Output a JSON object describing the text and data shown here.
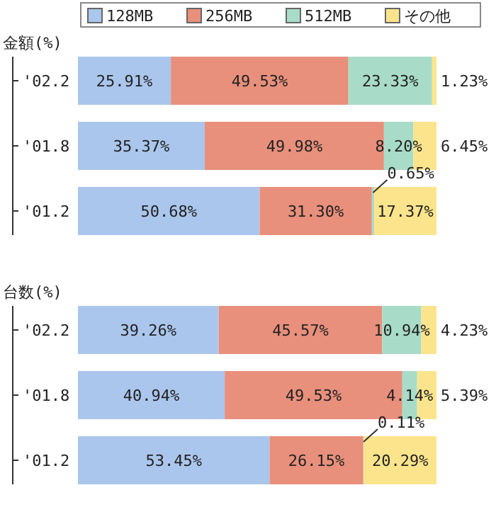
{
  "chart_data": [
    {
      "type": "bar",
      "orientation": "horizontal",
      "stacked": true,
      "title": "金額(%)",
      "categories": [
        "'02.2",
        "'01.8",
        "'01.2"
      ],
      "tick_labels": "y",
      "legend": "top",
      "series": [
        {
          "name": "128MB",
          "color": "#aac6ec",
          "values": [
            25.91,
            35.37,
            50.68
          ],
          "value_labels": [
            "25.91%",
            "35.37%",
            "50.68%"
          ]
        },
        {
          "name": "256MB",
          "color": "#e8907c",
          "values": [
            49.53,
            49.98,
            31.3
          ],
          "value_labels": [
            "49.53%",
            "49.98%",
            "31.30%"
          ]
        },
        {
          "name": "512MB",
          "color": "#a8dcc8",
          "values": [
            23.33,
            8.2,
            0.65
          ],
          "value_labels": [
            "23.33%",
            "8.20%",
            "0.65%"
          ]
        },
        {
          "name": "その他",
          "color": "#fce48c",
          "values": [
            1.23,
            6.45,
            17.37
          ],
          "value_labels": [
            "1.23%",
            "6.45%",
            "17.37%"
          ]
        }
      ]
    },
    {
      "type": "bar",
      "orientation": "horizontal",
      "stacked": true,
      "title": "台数(%)",
      "categories": [
        "'02.2",
        "'01.8",
        "'01.2"
      ],
      "tick_labels": "y",
      "series": [
        {
          "color": "#aac6ec",
          "values": [
            39.26,
            40.94,
            53.45
          ],
          "value_labels": [
            "39.26%",
            "40.94%",
            "53.45%"
          ]
        },
        {
          "color": "#e8907c",
          "values": [
            45.57,
            49.53,
            26.15
          ],
          "value_labels": [
            "45.57%",
            "49.53%",
            "26.15%"
          ]
        },
        {
          "color": "#a8dcc8",
          "values": [
            10.94,
            4.14,
            0.11
          ],
          "value_labels": [
            "10.94%",
            "4.14%",
            "0.11%"
          ]
        },
        {
          "color": "#fce48c",
          "values": [
            4.23,
            5.39,
            20.29
          ],
          "value_labels": [
            "4.23%",
            "5.39%",
            "20.29%"
          ]
        }
      ]
    }
  ]
}
